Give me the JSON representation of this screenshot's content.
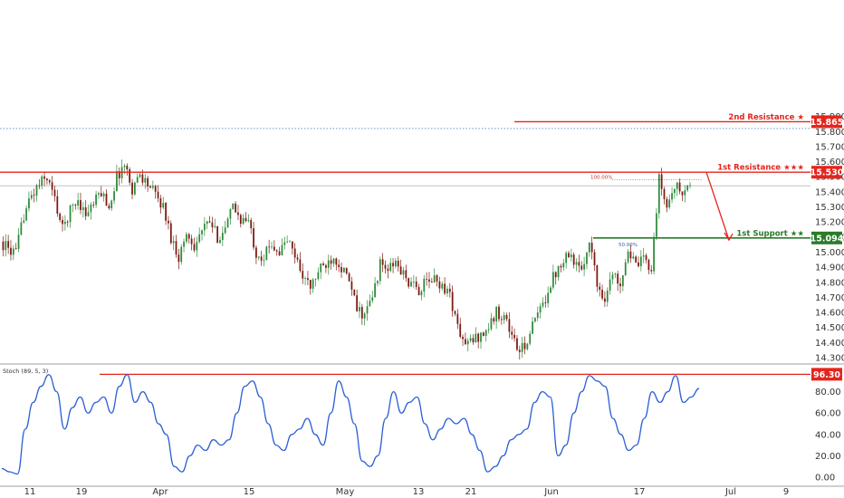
{
  "chart_data": [
    {
      "type": "candlestick",
      "ylim": [
        14.25,
        15.9
      ],
      "y_ticks": [
        "15.900",
        "15.800",
        "15.700",
        "15.600",
        "15.500",
        "15.400",
        "15.300",
        "15.200",
        "15.100",
        "15.000",
        "14.900",
        "14.800",
        "14.700",
        "14.600",
        "14.500",
        "14.400",
        "14.300"
      ],
      "x_ticks": [
        "11",
        "19",
        "Apr",
        "15",
        "May",
        "13",
        "21",
        "Jun",
        "17",
        "Jul",
        "9"
      ],
      "close_path": [
        15.07,
        15.02,
        14.99,
        15.25,
        15.37,
        15.45,
        15.5,
        15.35,
        15.15,
        15.28,
        15.35,
        15.25,
        15.32,
        15.4,
        15.3,
        15.5,
        15.58,
        15.42,
        15.52,
        15.45,
        15.38,
        15.3,
        15.1,
        14.97,
        15.12,
        15.05,
        15.14,
        15.2,
        15.1,
        15.15,
        15.3,
        15.22,
        15.2,
        15.0,
        14.97,
        15.06,
        15.0,
        15.08,
        14.98,
        14.85,
        14.76,
        14.87,
        14.92,
        14.98,
        14.9,
        14.8,
        14.62,
        14.58,
        14.7,
        14.92,
        14.88,
        14.93,
        14.85,
        14.78,
        14.75,
        14.8,
        14.82,
        14.78,
        14.72,
        14.5,
        14.38,
        14.42,
        14.45,
        14.5,
        14.6,
        14.58,
        14.45,
        14.33,
        14.42,
        14.55,
        14.65,
        14.8,
        14.9,
        15.0,
        14.95,
        14.85,
        15.1,
        14.78,
        14.7,
        14.85,
        14.8,
        15.02,
        14.9,
        14.95,
        14.9,
        15.48,
        15.3,
        15.45,
        15.38,
        15.45
      ],
      "levels": [
        {
          "label": "2nd Resistance ★",
          "value": "15.865",
          "color": "#e5251d"
        },
        {
          "label": "1st Resistance ★★★",
          "value": "15.530",
          "color": "#e5251d"
        },
        {
          "label": "1st Support ★★",
          "value": "15.094",
          "color": "#2a7a2a"
        }
      ],
      "fib_labels": [
        "100.00%",
        "50.00%"
      ],
      "extra_lines": [
        15.82,
        15.44
      ],
      "colors": {
        "up": "#2e8b3a",
        "down": "#7a1a12",
        "resistance": "#e5251d",
        "support": "#2a7a2a",
        "dotted": "#5b80c7"
      }
    },
    {
      "type": "line",
      "title": "Stoch (89, 5, 3)",
      "ylim": [
        0,
        100
      ],
      "y_ticks": [
        "80.00",
        "60.00",
        "40.00",
        "20.00",
        "0.00"
      ],
      "level": {
        "value": "96.30",
        "color": "#e5251d"
      },
      "series": [
        {
          "values": [
            8,
            5,
            3,
            45,
            70,
            85,
            96,
            80,
            45,
            65,
            75,
            60,
            70,
            75,
            60,
            85,
            96,
            70,
            80,
            70,
            50,
            40,
            10,
            5,
            20,
            30,
            25,
            35,
            30,
            35,
            60,
            85,
            90,
            75,
            50,
            30,
            25,
            40,
            45,
            55,
            40,
            30,
            60,
            90,
            75,
            50,
            15,
            10,
            20,
            55,
            80,
            60,
            70,
            75,
            50,
            35,
            45,
            55,
            50,
            55,
            40,
            25,
            5,
            10,
            20,
            35,
            40,
            45,
            70,
            80,
            75,
            20,
            30,
            60,
            80,
            95,
            90,
            85,
            55,
            40,
            25,
            30,
            55,
            80,
            70,
            80,
            95,
            70,
            75,
            83
          ],
          "color": "#2c5fd6"
        }
      ]
    }
  ]
}
